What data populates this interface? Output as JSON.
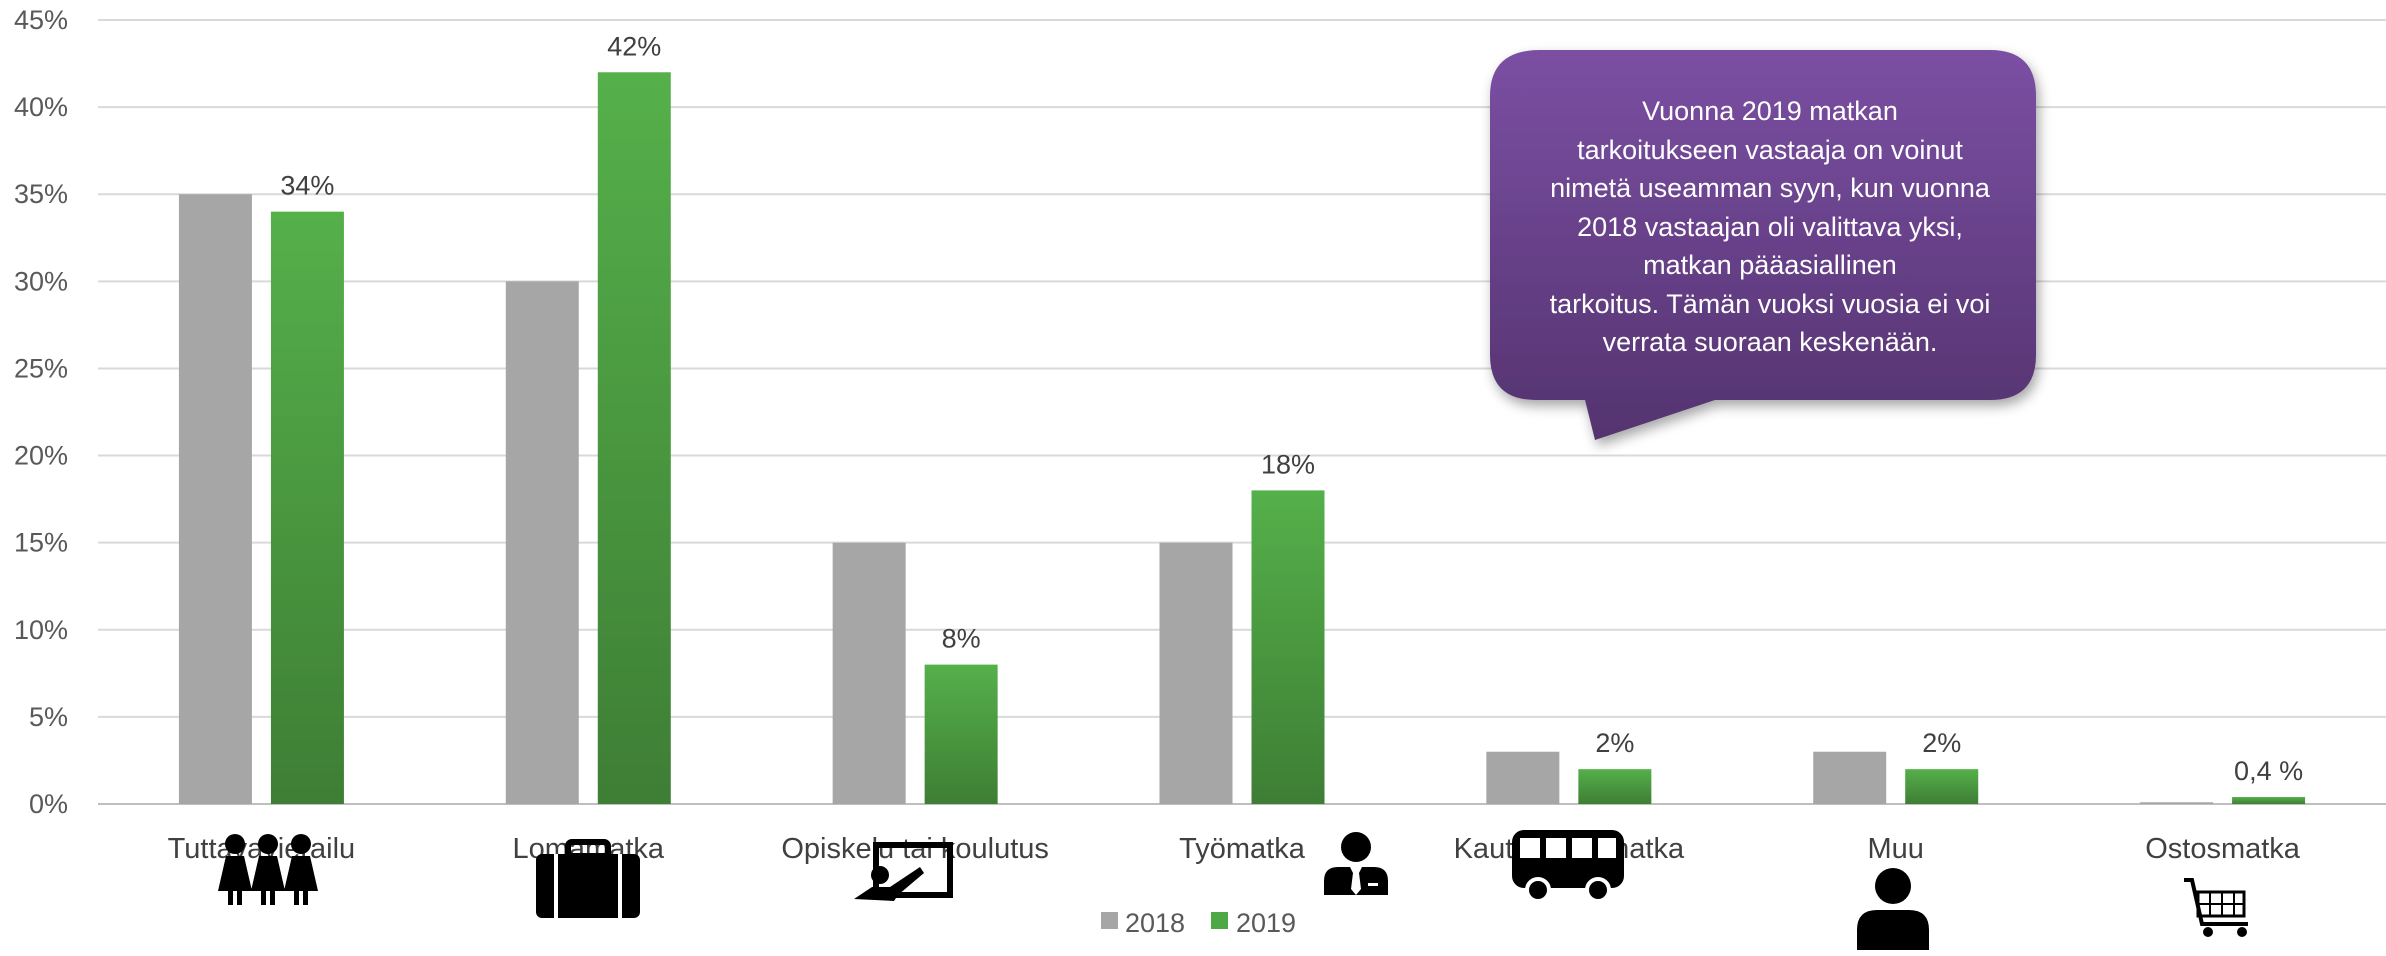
{
  "chart_data": {
    "type": "bar",
    "categories": [
      "Tuttavavierailu",
      "Lomamatka",
      "Opiskelu tai koulutus",
      "Työmatka",
      "Kauttakulkumatka",
      "Muu",
      "Ostosmatka"
    ],
    "series": [
      {
        "name": "2018",
        "values": [
          35,
          30,
          15,
          15,
          3,
          3,
          0.1
        ],
        "color": "#a6a6a6",
        "labels": [
          "",
          "",
          "",
          "",
          "",
          "",
          ""
        ]
      },
      {
        "name": "2019",
        "values": [
          34,
          42,
          8,
          18,
          2,
          2,
          0.4
        ],
        "color": "#4ea845",
        "labels": [
          "34%",
          "42%",
          "8%",
          "18%",
          "2%",
          "2%",
          "0,4 %"
        ]
      }
    ],
    "ylim": [
      0,
      45
    ],
    "yticks": [
      "0%",
      "5%",
      "10%",
      "15%",
      "20%",
      "25%",
      "30%",
      "35%",
      "40%",
      "45%"
    ],
    "grid": true,
    "legend_position": "bottom-center",
    "category_icons": [
      "people-group-icon",
      "suitcase-icon",
      "presentation-board-icon",
      "businessman-icon",
      "bus-icon",
      "person-icon",
      "shopping-cart-icon"
    ],
    "annotation": {
      "lines": [
        "Vuonna 2019 matkan",
        "tarkoitukseen vastaaja on voinut",
        "nimetä useamman syyn, kun vuonna",
        "2018 vastaajan oli valittava yksi,",
        "matkan pääasiallinen",
        "tarkoitus. Tämän vuoksi vuosia ei voi",
        "verrata suoraan keskenään."
      ],
      "color": "#6a3f94"
    }
  }
}
